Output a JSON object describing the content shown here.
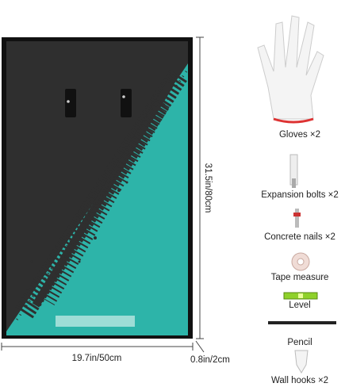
{
  "dimensions": {
    "height": "31.5in/80cm",
    "width": "19.7in/50cm",
    "depth": "0.8in/2cm"
  },
  "items": [
    "Gloves ×2",
    "Expansion bolts ×2",
    "Concrete nails ×2",
    "Tape measure",
    "Level",
    "Pencil",
    "Wall hooks ×2"
  ]
}
